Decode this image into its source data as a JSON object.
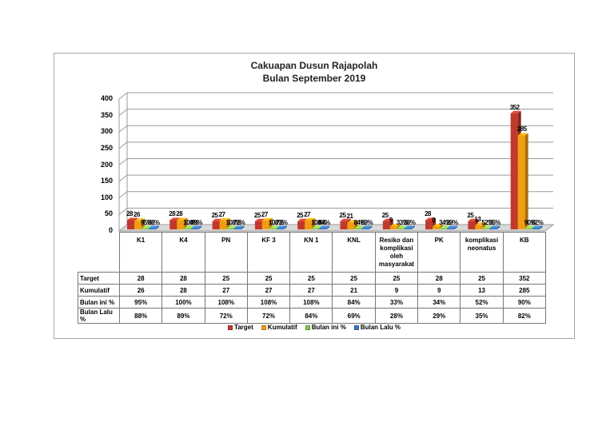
{
  "chart_data": {
    "type": "bar",
    "style": "3d-clustered-column-with-data-table",
    "title": "Cakuapan Dusun Rajapolah",
    "subtitle": "Bulan September 2019",
    "xlabel": "",
    "ylabel": "",
    "ylim": [
      0,
      400
    ],
    "yticks": [
      0,
      50,
      100,
      150,
      200,
      250,
      300,
      350,
      400
    ],
    "grid": true,
    "legend_position": "bottom",
    "categories": [
      "K1",
      "K4",
      "PN",
      "KF 3",
      "KN 1",
      "KNL",
      "Resiko dan komplikasi oleh masyarakat",
      "PK",
      "komplikasi neonatus",
      "KB"
    ],
    "series": [
      {
        "name": "Target",
        "color": "#c0392b",
        "values": [
          28,
          28,
          25,
          25,
          25,
          25,
          25,
          28,
          25,
          352
        ],
        "labels": [
          "28",
          "28",
          "25",
          "25",
          "25",
          "25",
          "25",
          "28",
          "25",
          "352"
        ]
      },
      {
        "name": "Kumulatif",
        "color": "#f39c12",
        "values": [
          26,
          28,
          27,
          27,
          27,
          21,
          9,
          9,
          13,
          285
        ],
        "labels": [
          "26",
          "28",
          "27",
          "27",
          "27",
          "21",
          "9",
          "9",
          "13",
          "285"
        ]
      },
      {
        "name": "Bulan ini %",
        "color": "#8bc34a",
        "values": [
          0.95,
          1.0,
          1.08,
          1.08,
          1.08,
          0.84,
          0.33,
          0.34,
          0.52,
          0.9
        ],
        "labels": [
          "95%",
          "100%",
          "108%",
          "108%",
          "108%",
          "84%",
          "33%",
          "34%",
          "52%",
          "90%"
        ]
      },
      {
        "name": "Bulan Lalu %",
        "color": "#3a78c2",
        "values": [
          0.88,
          0.89,
          0.72,
          0.72,
          0.84,
          0.69,
          0.28,
          0.29,
          0.35,
          0.82
        ],
        "labels": [
          "88%",
          "89%",
          "72%",
          "72%",
          "84%",
          "69%",
          "28%",
          "29%",
          "35%",
          "82%"
        ]
      }
    ]
  },
  "table": {
    "headers": [
      "K1",
      "K4",
      "PN",
      "KF 3",
      "KN 1",
      "KNL",
      "Resiko dan komplikasi oleh masyarakat",
      "PK",
      "komplikasi neonatus",
      "KB"
    ],
    "rows": [
      {
        "label": "Target",
        "cells": [
          "28",
          "28",
          "25",
          "25",
          "25",
          "25",
          "25",
          "28",
          "25",
          "352"
        ]
      },
      {
        "label": "Kumulatif",
        "cells": [
          "26",
          "28",
          "27",
          "27",
          "27",
          "21",
          "9",
          "9",
          "13",
          "285"
        ]
      },
      {
        "label": "Bulan ini %",
        "cells": [
          "95%",
          "100%",
          "108%",
          "108%",
          "108%",
          "84%",
          "33%",
          "34%",
          "52%",
          "90%"
        ]
      },
      {
        "label": "Bulan Lalu %",
        "cells": [
          "88%",
          "89%",
          "72%",
          "72%",
          "84%",
          "69%",
          "28%",
          "29%",
          "35%",
          "82%"
        ]
      }
    ]
  },
  "legend": [
    {
      "label": "Target",
      "color": "#c0392b"
    },
    {
      "label": "Kumulatif",
      "color": "#f39c12"
    },
    {
      "label": "Bulan ini %",
      "color": "#8bc34a"
    },
    {
      "label": "Bulan Lalu %",
      "color": "#3a78c2"
    }
  ]
}
